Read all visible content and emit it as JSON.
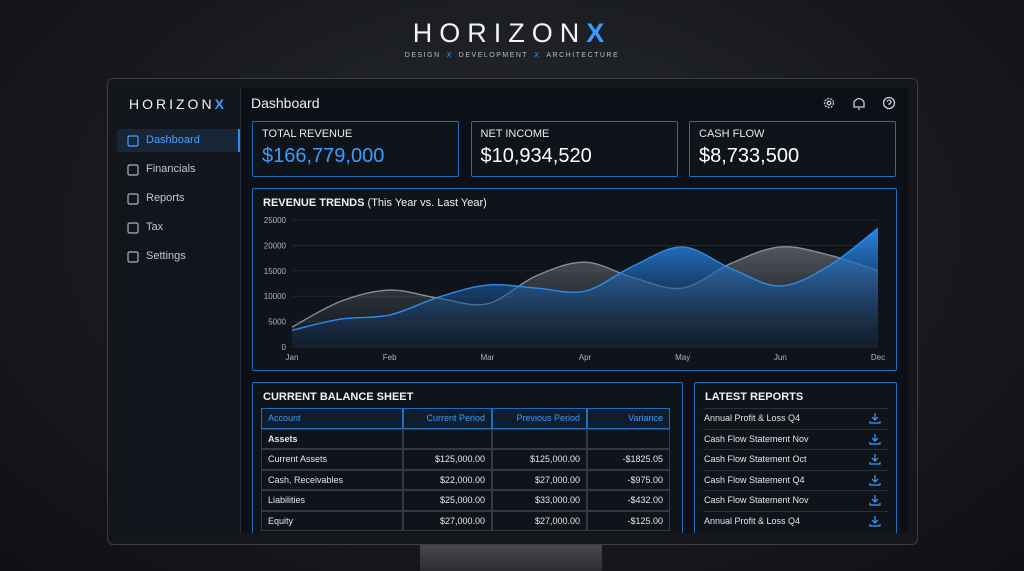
{
  "header": {
    "brand": "HORIZON",
    "mark": "X",
    "tagline": [
      "DESIGN",
      "DEVELOPMENT",
      "ARCHITECTURE"
    ],
    "separator": "X"
  },
  "sidebar": {
    "brand": "HORIZON",
    "mark": "X",
    "nav": [
      "Dashboard",
      "Financials",
      "Reports",
      "Tax",
      "Settings"
    ],
    "active": 0
  },
  "page_title": "Dashboard",
  "kpis": [
    {
      "label": "TOTAL REVENUE",
      "value": "$166,779,000",
      "color": "#3b9cff"
    },
    {
      "label": "NET INCOME",
      "value": "$10,934,520",
      "color": "#ffffff"
    },
    {
      "label": "CASH FLOW",
      "value": "$8,733,500",
      "color": "#ffffff"
    }
  ],
  "chart_data": {
    "type": "area",
    "title": "REVENUE TRENDS",
    "subtitle": "(This Year vs. Last Year)",
    "categories": [
      "Jan",
      null,
      "Feb",
      null,
      "Mar",
      null,
      "Apr",
      null,
      "May",
      null,
      "Jun",
      null,
      "Dec"
    ],
    "series": [
      {
        "color": "#8a8f96",
        "values": [
          3900,
          9000,
          11200,
          9600,
          8500,
          14000,
          16700,
          13600,
          11600,
          16500,
          19700,
          18100,
          15000
        ]
      },
      {
        "color": "#2a8cf0",
        "values": [
          3300,
          5500,
          6300,
          9800,
          12200,
          11600,
          11000,
          16000,
          19700,
          15400,
          12000,
          16000,
          23400
        ]
      }
    ],
    "ylim": [
      0,
      25000
    ],
    "yticks": [
      0,
      5000,
      10000,
      15000,
      20000,
      25000
    ],
    "grid": true
  },
  "balance_sheet": {
    "title": "CURRENT BALANCE SHEET",
    "columns": [
      "Account",
      "Current Period",
      "Previous Period",
      "Variance"
    ],
    "rows": [
      [
        "Assets"
      ],
      [
        "Current Assets",
        "$125,000.00",
        "$125,000.00",
        "-$1825.05"
      ],
      [
        "Cash, Receivables",
        "$22,000.00",
        "$27,000.00",
        "-$975.00"
      ],
      [
        "Liabilities",
        "$25,000.00",
        "$33,000.00",
        "-$432.00"
      ],
      [
        "Equity",
        "$27,000.00",
        "$27,000.00",
        "-$125.00"
      ]
    ]
  },
  "reports": {
    "title": "LATEST REPORTS",
    "items": [
      "Annual Profit & Loss Q4",
      "Cash Flow Statement Nov",
      "Cash Flow Statement Oct",
      "Cash Flow Statement Q4",
      "Cash Flow Statement Nov",
      "Annual Profit & Loss Q4"
    ]
  }
}
